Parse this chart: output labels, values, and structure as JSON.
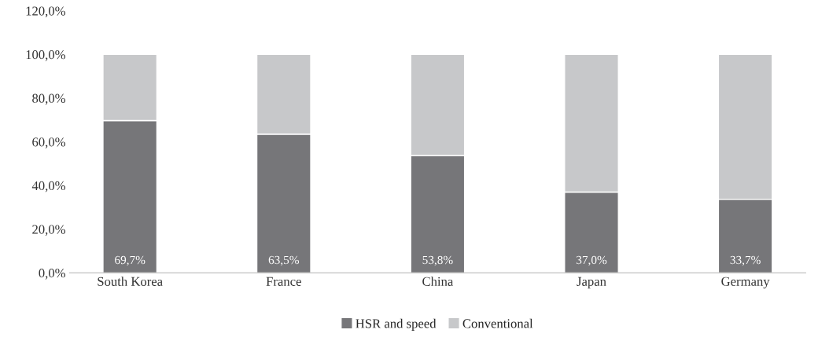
{
  "chart_data": {
    "type": "bar",
    "stacked": true,
    "categories": [
      "South Korea",
      "France",
      "China",
      "Japan",
      "Germany"
    ],
    "series": [
      {
        "name": "HSR and speed",
        "color": "#767679",
        "values": [
          69.7,
          63.5,
          53.8,
          37.0,
          33.7
        ],
        "value_labels": [
          "69,7%",
          "63,5%",
          "53,8%",
          "37,0%",
          "33,7%"
        ]
      },
      {
        "name": "Conventional",
        "color": "#c7c8ca",
        "values": [
          30.3,
          36.5,
          46.2,
          63.0,
          66.3
        ]
      }
    ],
    "ylim": [
      0,
      120
    ],
    "yticks": [
      {
        "value": 0,
        "label": "0,0%"
      },
      {
        "value": 20,
        "label": "20,0%"
      },
      {
        "value": 40,
        "label": "40,0%"
      },
      {
        "value": 60,
        "label": "60,0%"
      },
      {
        "value": 80,
        "label": "80,0%"
      },
      {
        "value": 100,
        "label": "100,0%"
      },
      {
        "value": 120,
        "label": "120,0%"
      }
    ],
    "grid": false,
    "legend": "bottom"
  }
}
